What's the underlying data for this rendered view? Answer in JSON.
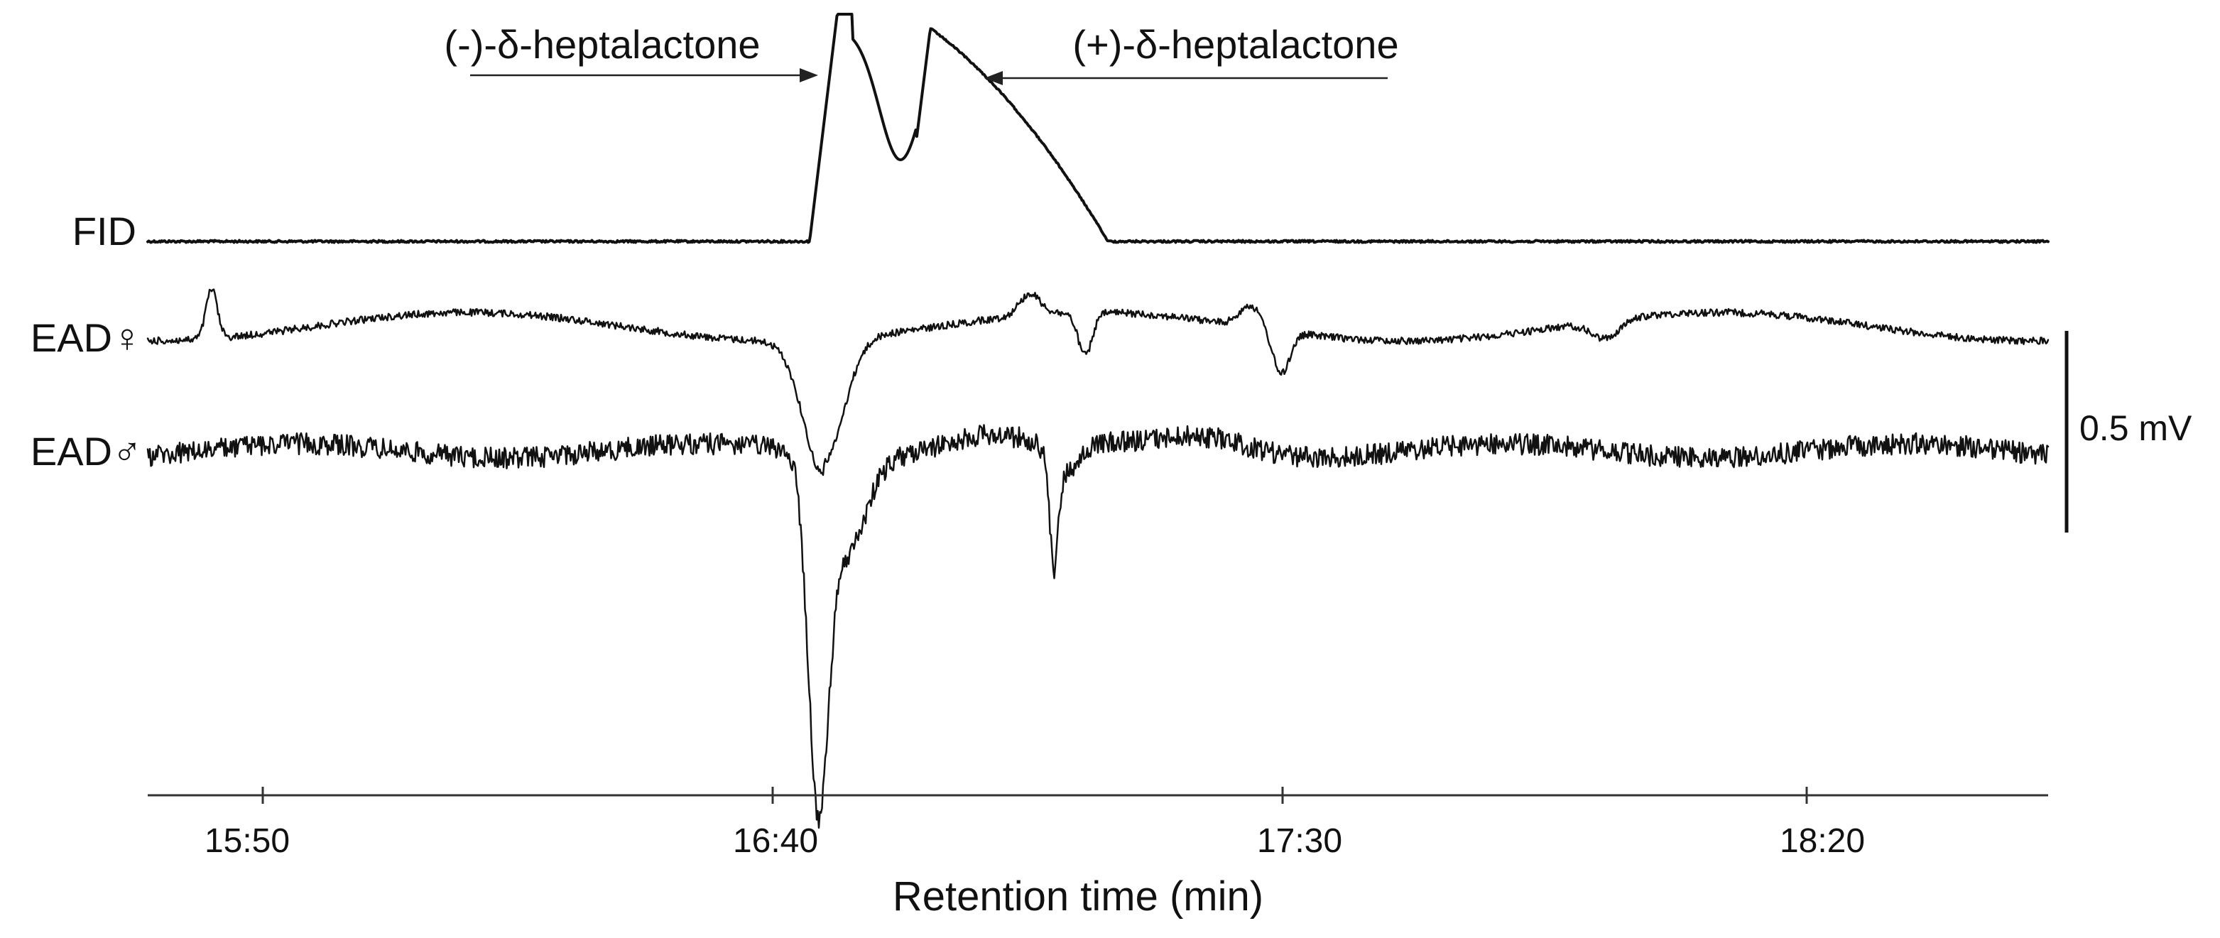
{
  "chart_data": {
    "type": "line",
    "title": "",
    "xlabel": "Retention time (min)",
    "ylabel": "",
    "x_unit": "min:sec",
    "xlim": [
      "15:30",
      "19:11"
    ],
    "x_ticks": [
      "15:50",
      "16:40",
      "17:30",
      "18:20"
    ],
    "grid": false,
    "legend": "none",
    "series": [
      {
        "name": "FID",
        "label": "FID"
      },
      {
        "name": "EAD♀",
        "label": "EAD♀"
      },
      {
        "name": "EAD♂",
        "label": "EAD♂"
      }
    ],
    "key_points": [
      {
        "series": "FID",
        "time": "16:44",
        "event": "onset of co-eluting enantiomer peaks (off-scale)"
      },
      {
        "series": "FID",
        "time": "16:50",
        "event": "valley between enantiomer peaks"
      },
      {
        "series": "FID",
        "time": "17:04",
        "event": "return to baseline"
      },
      {
        "series": "EAD♀",
        "time": "15:56",
        "event": "positive deflection"
      },
      {
        "series": "EAD♀",
        "time": "16:44",
        "event": "depolarisation minimum"
      },
      {
        "series": "EAD♀",
        "time": "17:09",
        "event": "depolarisation minimum"
      },
      {
        "series": "EAD♀",
        "time": "17:30",
        "event": "depolarisation minimum"
      },
      {
        "series": "EAD♂",
        "time": "16:44",
        "event": "largest depolarisation minimum"
      },
      {
        "series": "EAD♂",
        "time": "17:07",
        "event": "depolarisation minimum"
      }
    ],
    "annotations": [
      {
        "text": "(-)-δ-heptalactone",
        "points_to": "FID first peak, ~16:44"
      },
      {
        "text": "(+)-δ-heptalactone",
        "points_to": "FID second peak, ~16:51"
      }
    ],
    "scale_bar": {
      "value": 0.5,
      "unit": "mV",
      "label": "0.5 mV"
    }
  }
}
